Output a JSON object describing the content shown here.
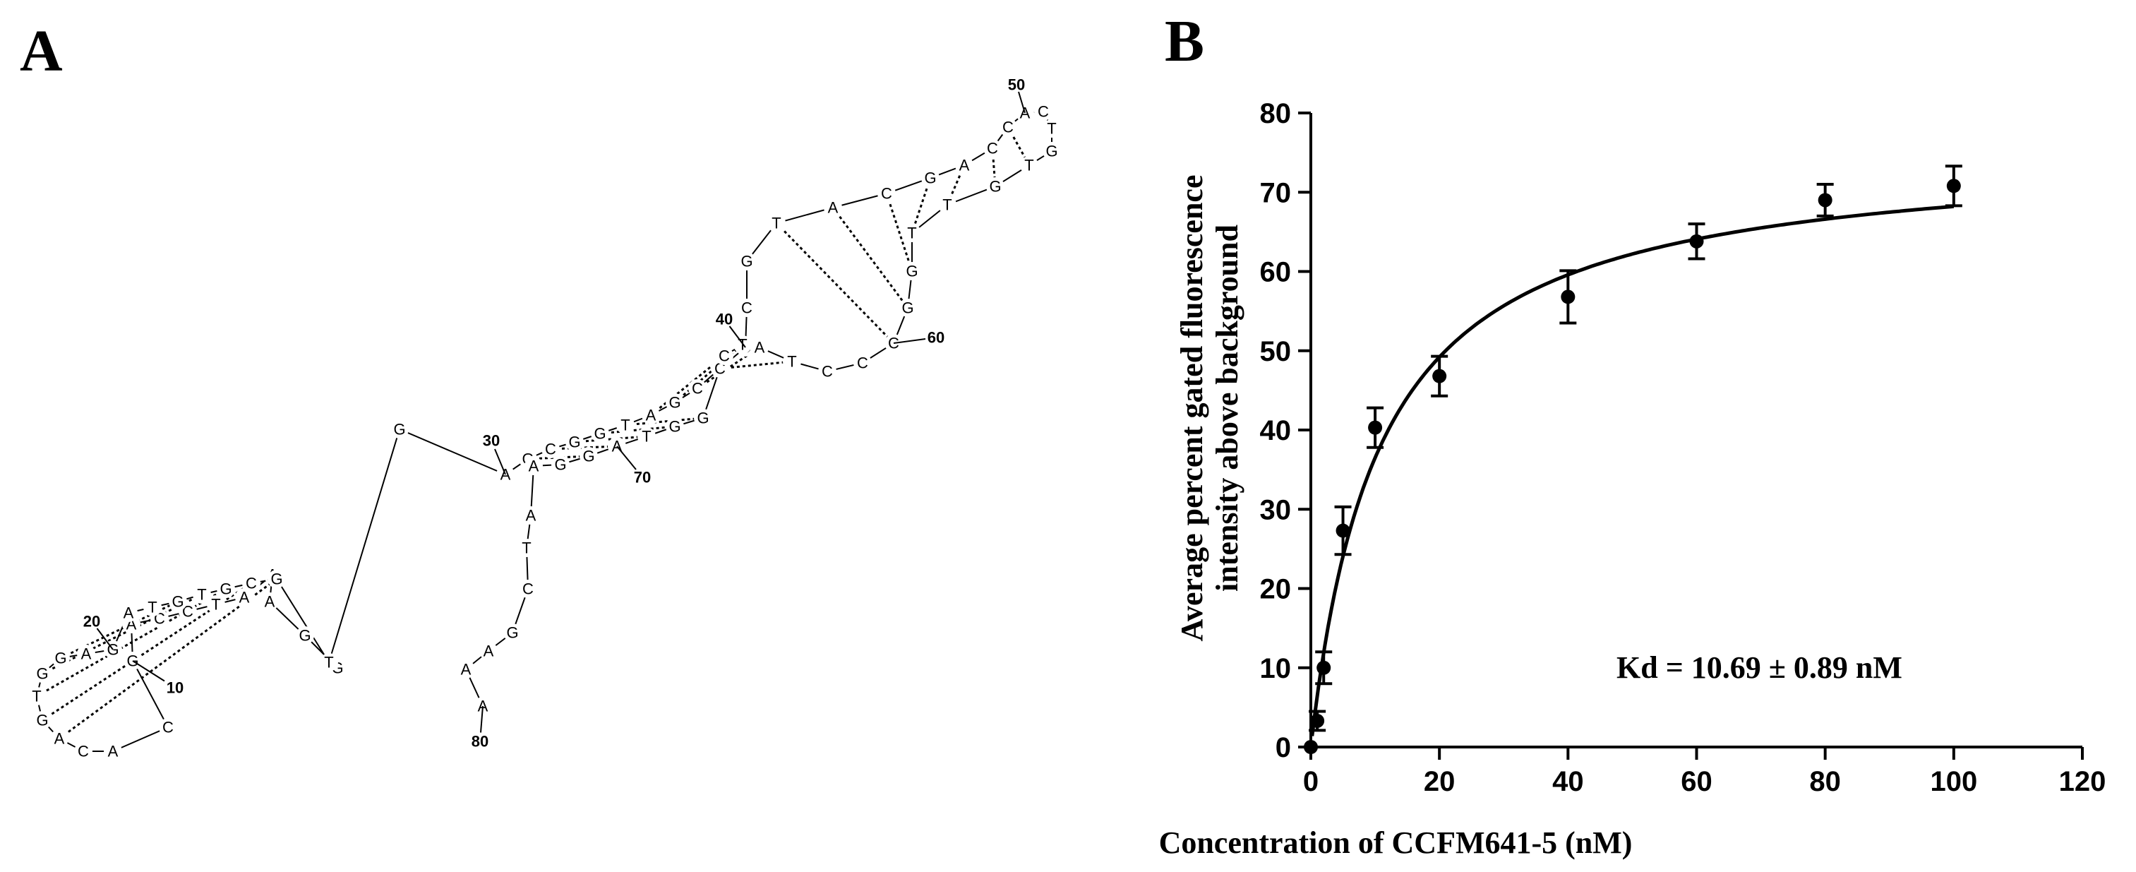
{
  "panel_a": {
    "label": "A",
    "nucleotides": [
      "G",
      "G",
      "A",
      "A",
      "A",
      "T",
      "C",
      "C",
      "A",
      "G",
      "C",
      "A",
      "C",
      "A",
      "G",
      "T",
      "G",
      "G",
      "A",
      "G",
      "A",
      "T",
      "G",
      "T",
      "G",
      "C",
      "G",
      "T",
      "G",
      "A",
      "G",
      "C",
      "G",
      "G",
      "T",
      "A",
      "G",
      "C",
      "C",
      "C",
      "C",
      "G",
      "T",
      "A",
      "C",
      "G",
      "A",
      "C",
      "C",
      "A",
      "C",
      "T",
      "G",
      "T",
      "G",
      "T",
      "T",
      "G",
      "G",
      "C",
      "C",
      "C",
      "T",
      "A",
      "T",
      "C",
      "G",
      "G",
      "T",
      "A",
      "G",
      "G",
      "A",
      "A",
      "T",
      "C",
      "G",
      "A",
      "A",
      "A"
    ],
    "position_labels": [
      "10",
      "20",
      "30",
      "40",
      "50",
      "60",
      "70",
      "80"
    ]
  },
  "panel_b": {
    "label": "B",
    "annotation": "Kd = 10.69 ± 0.89 nM"
  },
  "chart_data": {
    "type": "scatter",
    "xlabel": "Concentration of CCFM641-5 (nM)",
    "ylabel_lines": [
      "Average percent gated fluorescence",
      "intensity above background"
    ],
    "xlim": [
      0,
      120
    ],
    "ylim": [
      0,
      80
    ],
    "xticks": [
      0,
      20,
      40,
      60,
      80,
      100,
      120
    ],
    "yticks": [
      0,
      10,
      20,
      30,
      40,
      50,
      60,
      70,
      80
    ],
    "series": [
      {
        "points": [
          {
            "x": 0,
            "y": 0,
            "err": 0
          },
          {
            "x": 1,
            "y": 3.3,
            "err": 1.2
          },
          {
            "x": 2,
            "y": 10.0,
            "err": 2.0
          },
          {
            "x": 5,
            "y": 27.3,
            "err": 3.0
          },
          {
            "x": 10,
            "y": 40.3,
            "err": 2.5
          },
          {
            "x": 20,
            "y": 46.8,
            "err": 2.5
          },
          {
            "x": 40,
            "y": 56.8,
            "err": 3.3
          },
          {
            "x": 60,
            "y": 63.8,
            "err": 2.2
          },
          {
            "x": 80,
            "y": 69.0,
            "err": 2.0
          },
          {
            "x": 100,
            "y": 70.8,
            "err": 2.5
          }
        ]
      }
    ],
    "fit": {
      "model": "one-site binding",
      "bmax": 75.5,
      "kd": 10.69
    },
    "colors": {
      "ink": "#000000"
    }
  }
}
